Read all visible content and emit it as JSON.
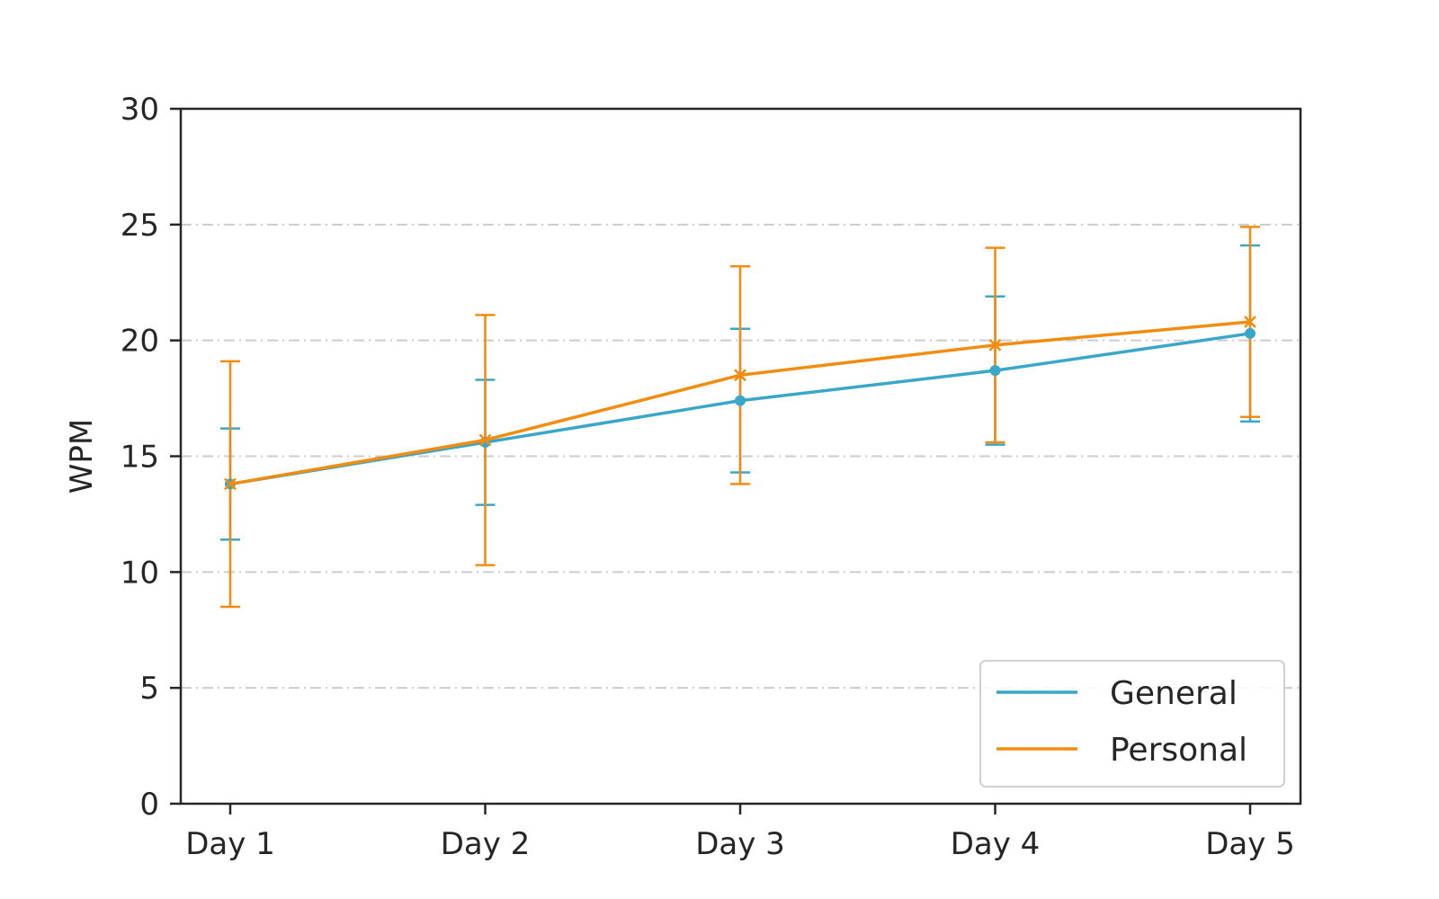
{
  "chart_data": {
    "type": "line",
    "title": "",
    "xlabel": "",
    "ylabel": "WPM",
    "categories": [
      "Day 1",
      "Day 2",
      "Day 3",
      "Day 4",
      "Day 5"
    ],
    "ylim": [
      0,
      30
    ],
    "yticks": [
      0,
      5,
      10,
      15,
      20,
      25,
      30
    ],
    "grid": "horizontal dash-dot",
    "legend_position": "lower right",
    "series": [
      {
        "name": "General",
        "color": "#3aa7c9",
        "marker": "circle",
        "values": [
          13.8,
          15.6,
          17.4,
          18.7,
          20.3
        ],
        "error": [
          2.4,
          2.7,
          3.1,
          3.2,
          3.8
        ]
      },
      {
        "name": "Personal",
        "color": "#f28c0f",
        "marker": "x",
        "values": [
          13.8,
          15.7,
          18.5,
          19.8,
          20.8
        ],
        "error": [
          5.3,
          5.4,
          4.7,
          4.2,
          4.1
        ]
      }
    ]
  }
}
